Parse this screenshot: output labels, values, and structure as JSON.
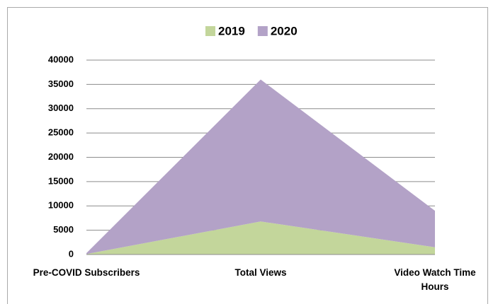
{
  "chart_data": {
    "type": "area",
    "stacked": true,
    "categories": [
      "Pre-COVID Subscribers",
      "Total Views",
      "Video Watch Time Hours"
    ],
    "series": [
      {
        "name": "2019",
        "color": "#c3d69b",
        "values": [
          100,
          6800,
          1500
        ]
      },
      {
        "name": "2020",
        "color": "#b3a2c7",
        "values": [
          200,
          29200,
          7500
        ]
      }
    ],
    "ylim": [
      0,
      40000
    ],
    "yticks": [
      0,
      5000,
      10000,
      15000,
      20000,
      25000,
      30000,
      35000,
      40000
    ],
    "grid": true,
    "legend": "top"
  }
}
